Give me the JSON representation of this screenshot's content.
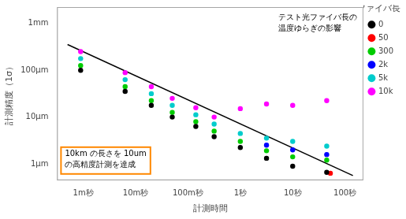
{
  "chart_data": {
    "type": "scatter",
    "xlabel": "計測時間",
    "ylabel": "計測精度（1σ）",
    "legend_title": "光ファイバ長(m)",
    "legend": "upper right",
    "grid": false,
    "marker": "circle",
    "xlim": [
      -3.5,
      2.35
    ],
    "ylim": [
      -6.35,
      -2.65
    ],
    "xticks": [
      {
        "value": -3,
        "label": "1m秒"
      },
      {
        "value": -2,
        "label": "10m秒"
      },
      {
        "value": -1,
        "label": "100m秒"
      },
      {
        "value": 0,
        "label": "1秒"
      },
      {
        "value": 1,
        "label": "10秒"
      },
      {
        "value": 2,
        "label": "100秒"
      }
    ],
    "yticks": [
      {
        "value": -6,
        "label": "1μm"
      },
      {
        "value": -5,
        "label": "10μm"
      },
      {
        "value": -4,
        "label": "100μm"
      },
      {
        "value": -3,
        "label": "1mm"
      }
    ],
    "series": [
      {
        "type": "line",
        "color": "#000000",
        "line_style": "solid",
        "x": [
          -3.3,
          2.15
        ],
        "values": [
          -3.45,
          -6.25
        ]
      },
      {
        "name": "0",
        "color": "#000000",
        "x": [
          -3.05,
          -2.2,
          -1.7,
          -1.3,
          -0.85,
          -0.5,
          0.0,
          0.5,
          1.0,
          1.65
        ],
        "values": [
          -4.0,
          -4.45,
          -4.75,
          -5.0,
          -5.2,
          -5.42,
          -5.65,
          -5.88,
          -6.05,
          -6.18
        ]
      },
      {
        "name": "50",
        "color": "#ff0000",
        "x": [
          1.72
        ],
        "values": [
          -6.2
        ]
      },
      {
        "name": "300",
        "color": "#00cc00",
        "x": [
          -3.05,
          -2.2,
          -1.7,
          -1.3,
          -0.85,
          -0.5,
          0.0,
          0.5,
          1.0,
          1.65
        ],
        "values": [
          -3.9,
          -4.35,
          -4.65,
          -4.9,
          -5.1,
          -5.3,
          -5.52,
          -5.72,
          -5.85,
          -5.92
        ]
      },
      {
        "name": "2k",
        "color": "#0000ff",
        "x": [
          0.5,
          1.0,
          1.65
        ],
        "values": [
          -5.6,
          -5.7,
          -5.8
        ]
      },
      {
        "name": "5k",
        "color": "#00cccc",
        "x": [
          -3.05,
          -2.2,
          -1.7,
          -1.3,
          -0.85,
          -0.5,
          0.0,
          0.5,
          1.0,
          1.65
        ],
        "values": [
          -3.75,
          -4.2,
          -4.5,
          -4.75,
          -4.95,
          -5.15,
          -5.35,
          -5.45,
          -5.52,
          -5.62
        ]
      },
      {
        "name": "10k",
        "color": "#ff00ff",
        "x": [
          -3.05,
          -2.2,
          -1.7,
          -1.3,
          -0.85,
          -0.5,
          0.0,
          0.5,
          1.0,
          1.65
        ],
        "values": [
          -3.6,
          -4.05,
          -4.35,
          -4.6,
          -4.8,
          -5.0,
          -4.82,
          -4.72,
          -4.75,
          -4.65
        ]
      }
    ],
    "annotations": [
      "10km の長さを 10um\nの高精度計測を達成",
      "テスト光ファイバ長の\n温度ゆらぎの影響"
    ]
  }
}
